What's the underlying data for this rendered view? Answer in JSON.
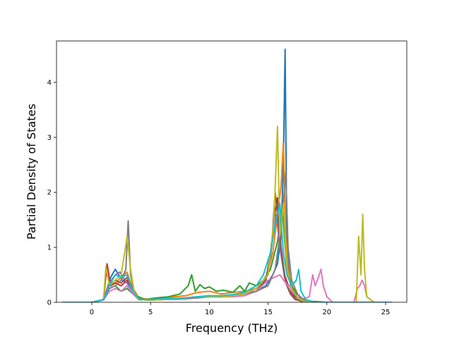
{
  "chart_data": {
    "type": "line",
    "title": "",
    "xlabel": "Frequency (THz)",
    "ylabel": "Partial Density of States",
    "xlim": [
      -3.0,
      26.8
    ],
    "ylim": [
      0,
      4.75
    ],
    "xticks": [
      0,
      5,
      10,
      15,
      20,
      25
    ],
    "yticks": [
      0,
      1,
      2,
      3,
      4
    ],
    "grid": false,
    "legend": "none",
    "series_colors": [
      "#1f77b4",
      "#ff7f0e",
      "#2ca02c",
      "#d62728",
      "#9467bd",
      "#8c564b",
      "#e377c2",
      "#7f7f7f",
      "#bcbd22",
      "#17becf"
    ],
    "series": [
      {
        "x": [
          -2.5,
          0,
          1.0,
          1.6,
          2.0,
          2.6,
          3.0,
          3.5,
          4.2,
          5,
          6,
          7,
          8,
          9,
          10,
          11,
          12,
          13,
          14,
          14.8,
          15.4,
          15.8,
          16.1,
          16.3,
          16.45,
          16.6,
          16.9,
          17.3,
          17.8,
          18.5,
          19.5,
          20.5,
          22.5,
          23.0,
          23.5,
          25.5
        ],
        "y": [
          0,
          0,
          0.05,
          0.45,
          0.6,
          0.4,
          0.35,
          0.2,
          0.05,
          0.05,
          0.06,
          0.05,
          0.08,
          0.1,
          0.12,
          0.1,
          0.12,
          0.15,
          0.2,
          0.3,
          0.5,
          0.7,
          1.2,
          2.5,
          4.6,
          1.0,
          0.3,
          0.1,
          0.02,
          0,
          0,
          0,
          0,
          0,
          0,
          0
        ]
      },
      {
        "x": [
          -2.5,
          0,
          1.0,
          1.4,
          2.0,
          2.5,
          3.0,
          3.4,
          4.0,
          5,
          6,
          7,
          8,
          9,
          10,
          11,
          12,
          13,
          14,
          14.8,
          15.4,
          15.8,
          16.1,
          16.3,
          16.5,
          16.7,
          17.0,
          17.5,
          18.0,
          19.0,
          20.0,
          22.5,
          23.0,
          23.5,
          25.5
        ],
        "y": [
          0,
          0,
          0.05,
          0.3,
          0.35,
          0.45,
          0.55,
          0.3,
          0.08,
          0.05,
          0.07,
          0.1,
          0.12,
          0.18,
          0.2,
          0.15,
          0.18,
          0.2,
          0.25,
          0.4,
          0.9,
          1.6,
          2.1,
          2.9,
          1.2,
          0.6,
          0.3,
          0.15,
          0.05,
          0,
          0,
          0,
          0,
          0,
          0
        ]
      },
      {
        "x": [
          -2.5,
          0,
          1.0,
          1.5,
          2.0,
          2.5,
          3.0,
          3.5,
          4.5,
          5.5,
          6.5,
          7.5,
          8.2,
          8.5,
          8.8,
          9.2,
          9.6,
          10,
          10.6,
          11.2,
          12,
          12.6,
          13,
          13.4,
          14,
          14.6,
          15.2,
          15.8,
          16.2,
          16.6,
          17.0,
          17.5,
          18.5,
          20,
          22.5,
          23.0,
          25.5
        ],
        "y": [
          0,
          0,
          0.04,
          0.25,
          0.3,
          0.2,
          0.25,
          0.15,
          0.05,
          0.08,
          0.1,
          0.15,
          0.3,
          0.5,
          0.2,
          0.32,
          0.25,
          0.28,
          0.2,
          0.22,
          0.18,
          0.3,
          0.2,
          0.35,
          0.3,
          0.4,
          0.6,
          1.1,
          1.7,
          0.6,
          0.3,
          0.1,
          0.02,
          0,
          0,
          0,
          0
        ]
      },
      {
        "x": [
          -2.5,
          0,
          1.0,
          1.3,
          1.6,
          2.0,
          2.5,
          3.0,
          3.5,
          4.0,
          5,
          6,
          7,
          8,
          9,
          10,
          11,
          12,
          13,
          14,
          14.8,
          15.2,
          15.5,
          15.8,
          16.1,
          16.4,
          16.8,
          17.2,
          18.0,
          19.0,
          20.0,
          22.5,
          23.0,
          25.5
        ],
        "y": [
          0,
          0,
          0.05,
          0.7,
          0.3,
          0.35,
          0.3,
          0.4,
          0.2,
          0.05,
          0.04,
          0.05,
          0.06,
          0.08,
          0.1,
          0.1,
          0.1,
          0.12,
          0.15,
          0.25,
          0.4,
          0.8,
          1.5,
          1.9,
          1.0,
          0.5,
          0.25,
          0.1,
          0.02,
          0,
          0,
          0,
          0,
          0
        ]
      },
      {
        "x": [
          -2.5,
          0,
          1.0,
          1.5,
          2.0,
          2.4,
          2.8,
          3.2,
          3.6,
          4.0,
          5,
          6,
          7,
          8,
          9,
          10,
          11,
          12,
          13,
          14,
          15.0,
          15.4,
          15.7,
          16.0,
          16.4,
          16.8,
          17.2,
          18.0,
          19.0,
          20.0,
          22.5,
          23.0,
          25.5
        ],
        "y": [
          0,
          0,
          0.05,
          0.35,
          0.5,
          0.55,
          0.4,
          0.3,
          0.15,
          0.05,
          0.04,
          0.05,
          0.06,
          0.07,
          0.1,
          0.1,
          0.12,
          0.12,
          0.15,
          0.2,
          0.5,
          1.2,
          1.6,
          1.0,
          0.45,
          0.2,
          0.08,
          0.02,
          0,
          0,
          0,
          0,
          0
        ]
      },
      {
        "x": [
          -2.5,
          0,
          1.0,
          1.5,
          2.0,
          2.5,
          3.0,
          3.5,
          4.0,
          5,
          6,
          7,
          8,
          9,
          10,
          11,
          12,
          13,
          14,
          14.8,
          15.3,
          15.6,
          15.9,
          16.2,
          16.5,
          16.9,
          17.3,
          18.0,
          19.0,
          20.0,
          22.5,
          23.0,
          25.5
        ],
        "y": [
          0,
          0,
          0.05,
          0.3,
          0.4,
          0.35,
          0.45,
          0.25,
          0.05,
          0.04,
          0.05,
          0.06,
          0.07,
          0.1,
          0.1,
          0.1,
          0.12,
          0.15,
          0.2,
          0.4,
          1.0,
          2.0,
          1.4,
          0.8,
          0.35,
          0.15,
          0.05,
          0.01,
          0,
          0,
          0,
          0,
          0
        ]
      },
      {
        "x": [
          -2.5,
          0,
          1.0,
          1.5,
          2.0,
          2.5,
          3.0,
          3.5,
          4.0,
          5,
          6,
          7,
          8,
          9,
          10,
          11,
          12,
          13,
          14,
          15,
          16,
          17,
          17.8,
          18.5,
          18.8,
          19.0,
          19.2,
          19.5,
          19.7,
          20.0,
          20.5,
          22.3,
          22.6,
          22.8,
          23.0,
          23.2,
          23.4,
          24,
          25.5
        ],
        "y": [
          0,
          0,
          0.04,
          0.2,
          0.25,
          0.2,
          0.3,
          0.15,
          0.05,
          0.04,
          0.05,
          0.05,
          0.06,
          0.08,
          0.1,
          0.1,
          0.1,
          0.12,
          0.2,
          0.4,
          0.5,
          0.2,
          0.05,
          0.1,
          0.5,
          0.3,
          0.4,
          0.6,
          0.3,
          0.1,
          0,
          0,
          0.25,
          0.3,
          0.4,
          0.3,
          0.1,
          0,
          0
        ]
      },
      {
        "x": [
          -2.5,
          0,
          1.0,
          1.5,
          2.0,
          2.5,
          2.9,
          3.1,
          3.3,
          3.6,
          4.0,
          5,
          6,
          7,
          8,
          9,
          10,
          11,
          12,
          13,
          14,
          15.0,
          15.6,
          16.0,
          16.3,
          16.5,
          16.7,
          17.0,
          17.5,
          18.0,
          19.0,
          20.0,
          22.5,
          23.0,
          25.5
        ],
        "y": [
          0,
          0,
          0.05,
          0.25,
          0.3,
          0.4,
          0.6,
          1.48,
          0.5,
          0.2,
          0.05,
          0.04,
          0.05,
          0.06,
          0.07,
          0.08,
          0.1,
          0.1,
          0.12,
          0.15,
          0.2,
          0.3,
          0.6,
          1.2,
          1.8,
          2.36,
          1.0,
          0.4,
          0.15,
          0.05,
          0,
          0,
          0,
          0,
          0
        ]
      },
      {
        "x": [
          -2.5,
          0,
          1.0,
          1.2,
          1.5,
          2.0,
          2.5,
          2.8,
          3.0,
          3.3,
          3.6,
          4.0,
          5,
          6,
          7,
          8,
          9,
          10,
          11,
          12,
          13,
          14,
          15.0,
          15.5,
          15.8,
          16.0,
          16.3,
          16.6,
          17.0,
          17.5,
          18.0,
          19.0,
          20.0,
          22.5,
          22.7,
          22.9,
          23.05,
          23.2,
          23.4,
          24.0,
          25.5
        ],
        "y": [
          0,
          0,
          0.05,
          0.65,
          0.3,
          0.4,
          0.5,
          0.9,
          1.2,
          0.6,
          0.2,
          0.05,
          0.04,
          0.05,
          0.06,
          0.08,
          0.1,
          0.1,
          0.1,
          0.12,
          0.15,
          0.25,
          0.5,
          1.5,
          3.2,
          1.2,
          1.8,
          0.6,
          0.25,
          0.08,
          0.02,
          0,
          0,
          0,
          1.2,
          0.5,
          1.6,
          0.6,
          0.1,
          0,
          0
        ]
      },
      {
        "x": [
          -2.5,
          0,
          1.0,
          1.5,
          2.0,
          2.5,
          3.0,
          3.5,
          4.0,
          5,
          6,
          7,
          8,
          9,
          10,
          11,
          12,
          13,
          14,
          14.6,
          15.2,
          15.6,
          16.0,
          16.3,
          16.6,
          17.0,
          17.4,
          17.6,
          17.8,
          18.2,
          19.0,
          20.0,
          22.5,
          23.0,
          25.5
        ],
        "y": [
          0,
          0,
          0.05,
          0.3,
          0.5,
          0.45,
          0.5,
          0.2,
          0.05,
          0.05,
          0.06,
          0.07,
          0.08,
          0.1,
          0.12,
          0.12,
          0.14,
          0.18,
          0.3,
          0.5,
          0.9,
          1.4,
          1.8,
          0.9,
          0.5,
          0.3,
          0.4,
          0.6,
          0.2,
          0.05,
          0,
          0,
          0,
          0,
          0
        ]
      }
    ]
  }
}
